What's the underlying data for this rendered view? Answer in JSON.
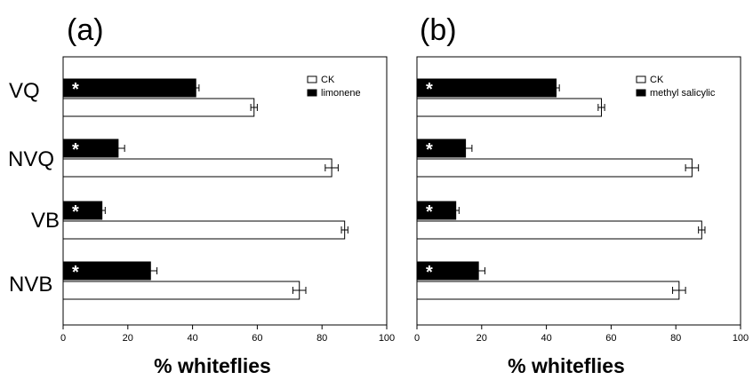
{
  "chart_data": [
    {
      "type": "bar",
      "orientation": "horizontal",
      "panel_label": "(a)",
      "categories": [
        "VQ",
        "NVQ",
        "VB",
        "NVB"
      ],
      "series": [
        {
          "name": "limonene",
          "color": "#000000",
          "values": [
            41,
            17,
            12,
            27
          ],
          "errors": [
            1,
            2,
            1,
            2
          ],
          "significance": [
            "*",
            "*",
            "*",
            "*"
          ]
        },
        {
          "name": "CK",
          "color": "#ffffff",
          "values": [
            59,
            83,
            87,
            73
          ],
          "errors": [
            1,
            2,
            1,
            2
          ]
        }
      ],
      "legend_order": [
        "CK",
        "limonene"
      ],
      "legend_position": "top-right",
      "xlabel": "% whiteflies",
      "xlim": [
        0,
        100
      ],
      "xticks": [
        "0",
        "20",
        "40",
        "60",
        "80",
        "100"
      ]
    },
    {
      "type": "bar",
      "orientation": "horizontal",
      "panel_label": "(b)",
      "categories": [
        "VQ",
        "NVQ",
        "VB",
        "NVB"
      ],
      "series": [
        {
          "name": "methyl salicylic",
          "color": "#000000",
          "values": [
            43,
            15,
            12,
            19
          ],
          "errors": [
            1,
            2,
            1,
            2
          ],
          "significance": [
            "*",
            "*",
            "*",
            "*"
          ]
        },
        {
          "name": "CK",
          "color": "#ffffff",
          "values": [
            57,
            85,
            88,
            81
          ],
          "errors": [
            1,
            2,
            1,
            2
          ]
        }
      ],
      "legend_order": [
        "CK",
        "methyl salicylic"
      ],
      "legend_position": "top-right",
      "xlabel": "% whiteflies",
      "xlim": [
        0,
        100
      ],
      "xticks": [
        "0",
        "20",
        "40",
        "60",
        "80",
        "100"
      ]
    }
  ]
}
